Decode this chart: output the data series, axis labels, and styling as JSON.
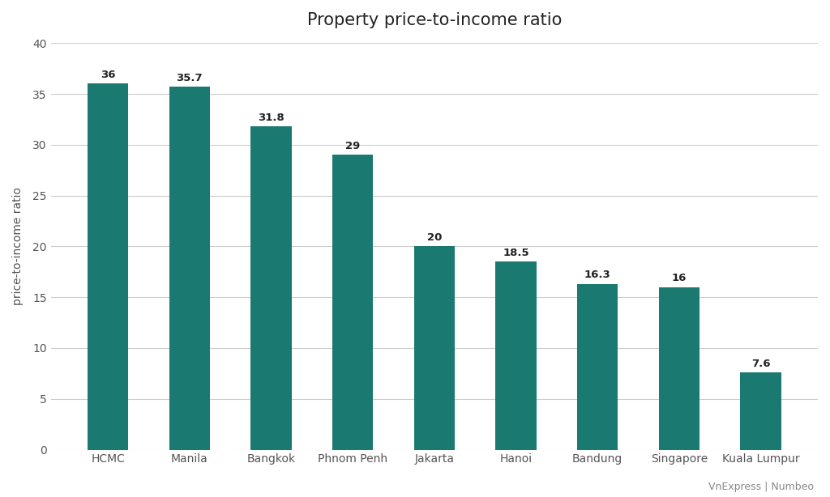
{
  "title": "Property price-to-income ratio",
  "ylabel": "price-to-income ratio",
  "source": "VnExpress | Numbeo",
  "categories": [
    "HCMC",
    "Manila",
    "Bangkok",
    "Phnom Penh",
    "Jakarta",
    "Hanoi",
    "Bandung",
    "Singapore",
    "Kuala Lumpur"
  ],
  "values": [
    36,
    35.7,
    31.8,
    29,
    20,
    18.5,
    16.3,
    16,
    7.6
  ],
  "bar_color": "#1a7a72",
  "background_color": "#ffffff",
  "ylim": [
    0,
    40
  ],
  "yticks": [
    0,
    5,
    10,
    15,
    20,
    25,
    30,
    35,
    40
  ],
  "title_fontsize": 15,
  "label_fontsize": 10,
  "ylabel_fontsize": 10,
  "source_fontsize": 9,
  "value_label_fontsize": 9.5,
  "bar_width": 0.5
}
